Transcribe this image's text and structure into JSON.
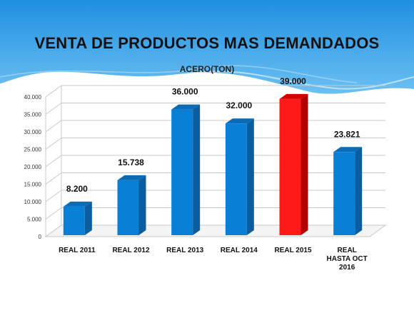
{
  "slide": {
    "title": "VENTA DE PRODUCTOS MAS DEMANDADOS",
    "banner_color": "#3aa0e6"
  },
  "chart_data": {
    "type": "bar",
    "title": "ACERO(TON)",
    "categories": [
      [
        "REAL 2011"
      ],
      [
        "REAL 2012"
      ],
      [
        "REAL 2013"
      ],
      [
        "REAL 2014"
      ],
      [
        "REAL 2015"
      ],
      [
        "REAL",
        "HASTA OCT",
        "2016"
      ]
    ],
    "values": [
      8200,
      15738,
      36000,
      32000,
      39000,
      23821
    ],
    "data_labels": [
      "8.200",
      "15.738",
      "36.000",
      "32.000",
      "39.000",
      "23.821"
    ],
    "y_ticks": [
      0,
      5000,
      10000,
      15000,
      20000,
      25000,
      30000,
      35000,
      40000
    ],
    "y_tick_labels": [
      "0",
      "5.000",
      "10.000",
      "15.000",
      "20.000",
      "25.000",
      "30.000",
      "35.000",
      "40.000"
    ],
    "ylim": [
      0,
      40000
    ],
    "xlabel": "",
    "ylabel": "",
    "grid": true,
    "colors": {
      "bar_front": "#0a7fd6",
      "bar_side": "#0a5d9e",
      "bar_top": "#0b6cb5",
      "highlight_front": "#ff1a1a",
      "highlight_side": "#b30000",
      "highlight_top": "#d40000",
      "grid": "#c8c8c8"
    },
    "highlight_index": 4
  }
}
